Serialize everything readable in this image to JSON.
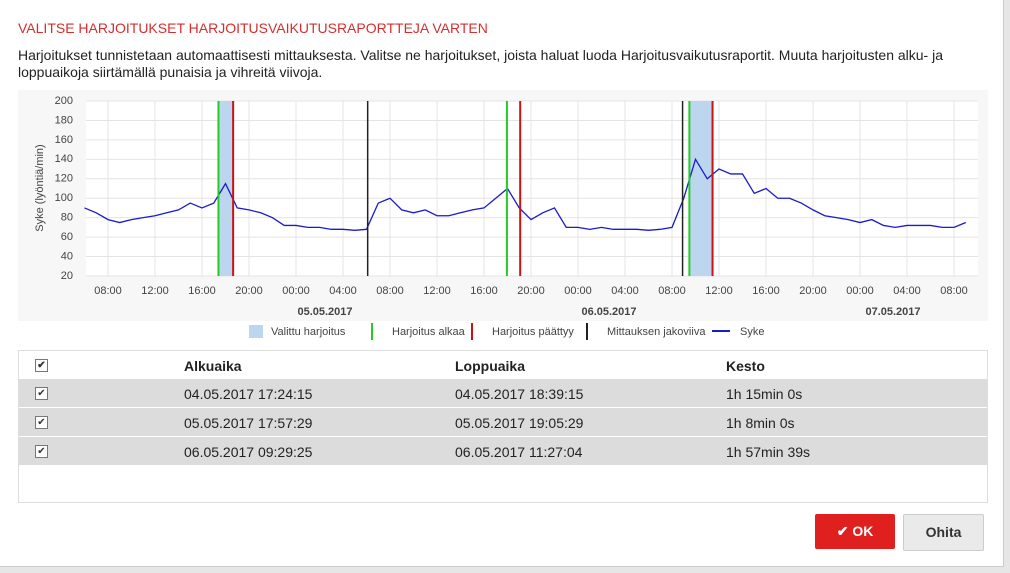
{
  "dialog": {
    "title": "VALITSE HARJOITUKSET HARJOITUSVAIKUTUSRAPORTTEJA VARTEN",
    "description": "Harjoitukset tunnistetaan automaattisesti mittauksesta. Valitse ne harjoitukset, joista haluat luoda Harjoitusvaikutusraportit. Muuta harjoitusten alku- ja loppuaikoja siirtämällä punaisia ja vihreitä viivoja.",
    "chart": {
      "type": "line",
      "y_label": "Syke (lyöntiä/min)",
      "ylim": [
        20,
        200
      ],
      "yticks": [
        20,
        40,
        60,
        80,
        100,
        120,
        140,
        160,
        180,
        200
      ],
      "grid": true,
      "x": [
        null,
        null,
        "08:00",
        null,
        null,
        null,
        "12:00",
        null,
        null,
        null,
        "16:00",
        null,
        null,
        null,
        "20:00",
        null,
        null,
        null,
        "00:00",
        null,
        null,
        null,
        "04:00",
        null,
        null,
        null,
        "08:00",
        null,
        null,
        null,
        "12:00",
        null,
        null,
        null,
        "16:00",
        null,
        null,
        null,
        "20:00",
        null,
        null,
        null,
        "00:00",
        null,
        null,
        null,
        "04:00",
        null,
        null,
        null,
        "08:00",
        null,
        null,
        null,
        "12:00",
        null,
        null,
        null,
        "16:00",
        null,
        null,
        null,
        "20:00",
        null,
        null,
        null,
        "00:00",
        null,
        null,
        null,
        "04:00",
        null,
        null,
        null,
        "08:00",
        null
      ],
      "date_labels": [
        "05.05.2017",
        "06.05.2017",
        "07.05.2017"
      ],
      "series": [
        {
          "name": "Syke",
          "color": "#1a1acc",
          "values": [
            90,
            85,
            78,
            75,
            78,
            80,
            82,
            85,
            88,
            95,
            90,
            95,
            115,
            90,
            88,
            85,
            80,
            72,
            72,
            70,
            70,
            68,
            68,
            67,
            68,
            95,
            100,
            88,
            85,
            88,
            82,
            82,
            85,
            88,
            90,
            100,
            110,
            90,
            78,
            85,
            90,
            70,
            70,
            68,
            70,
            68,
            68,
            68,
            67,
            68,
            70,
            100,
            140,
            120,
            130,
            125,
            125,
            105,
            110,
            100,
            100,
            95,
            88,
            82,
            80,
            78,
            75,
            78,
            72,
            70,
            72,
            72,
            72,
            70,
            70,
            75
          ]
        }
      ],
      "workouts": [
        {
          "start": 11.4,
          "end": 12.65,
          "shaded": true
        },
        {
          "start": 35.95,
          "end": 37.08,
          "shaded": false
        },
        {
          "start": 51.48,
          "end": 53.45,
          "shaded": true
        }
      ],
      "dividers": [
        24.1,
        50.9
      ],
      "shade_color": "#bcd6f0",
      "start_color": "#22cc22",
      "end_color": "#cc1111",
      "divider_color": "#222222",
      "legend": [
        "Valittu harjoitus",
        "Harjoitus alkaa",
        "Harjoitus päättyy",
        "Mittauksen jakoviiva",
        "Syke"
      ]
    },
    "table": {
      "columns": [
        "Alkuaika",
        "Loppuaika",
        "Kesto"
      ],
      "rows": [
        [
          "04.05.2017 17:24:15",
          "04.05.2017 18:39:15",
          "1h 15min 0s"
        ],
        [
          "05.05.2017 17:57:29",
          "05.05.2017 19:05:29",
          "1h 8min 0s"
        ],
        [
          "06.05.2017 09:29:25",
          "06.05.2017 11:27:04",
          "1h 57min 39s"
        ]
      ]
    },
    "buttons": [
      "OK",
      "Ohita"
    ]
  }
}
